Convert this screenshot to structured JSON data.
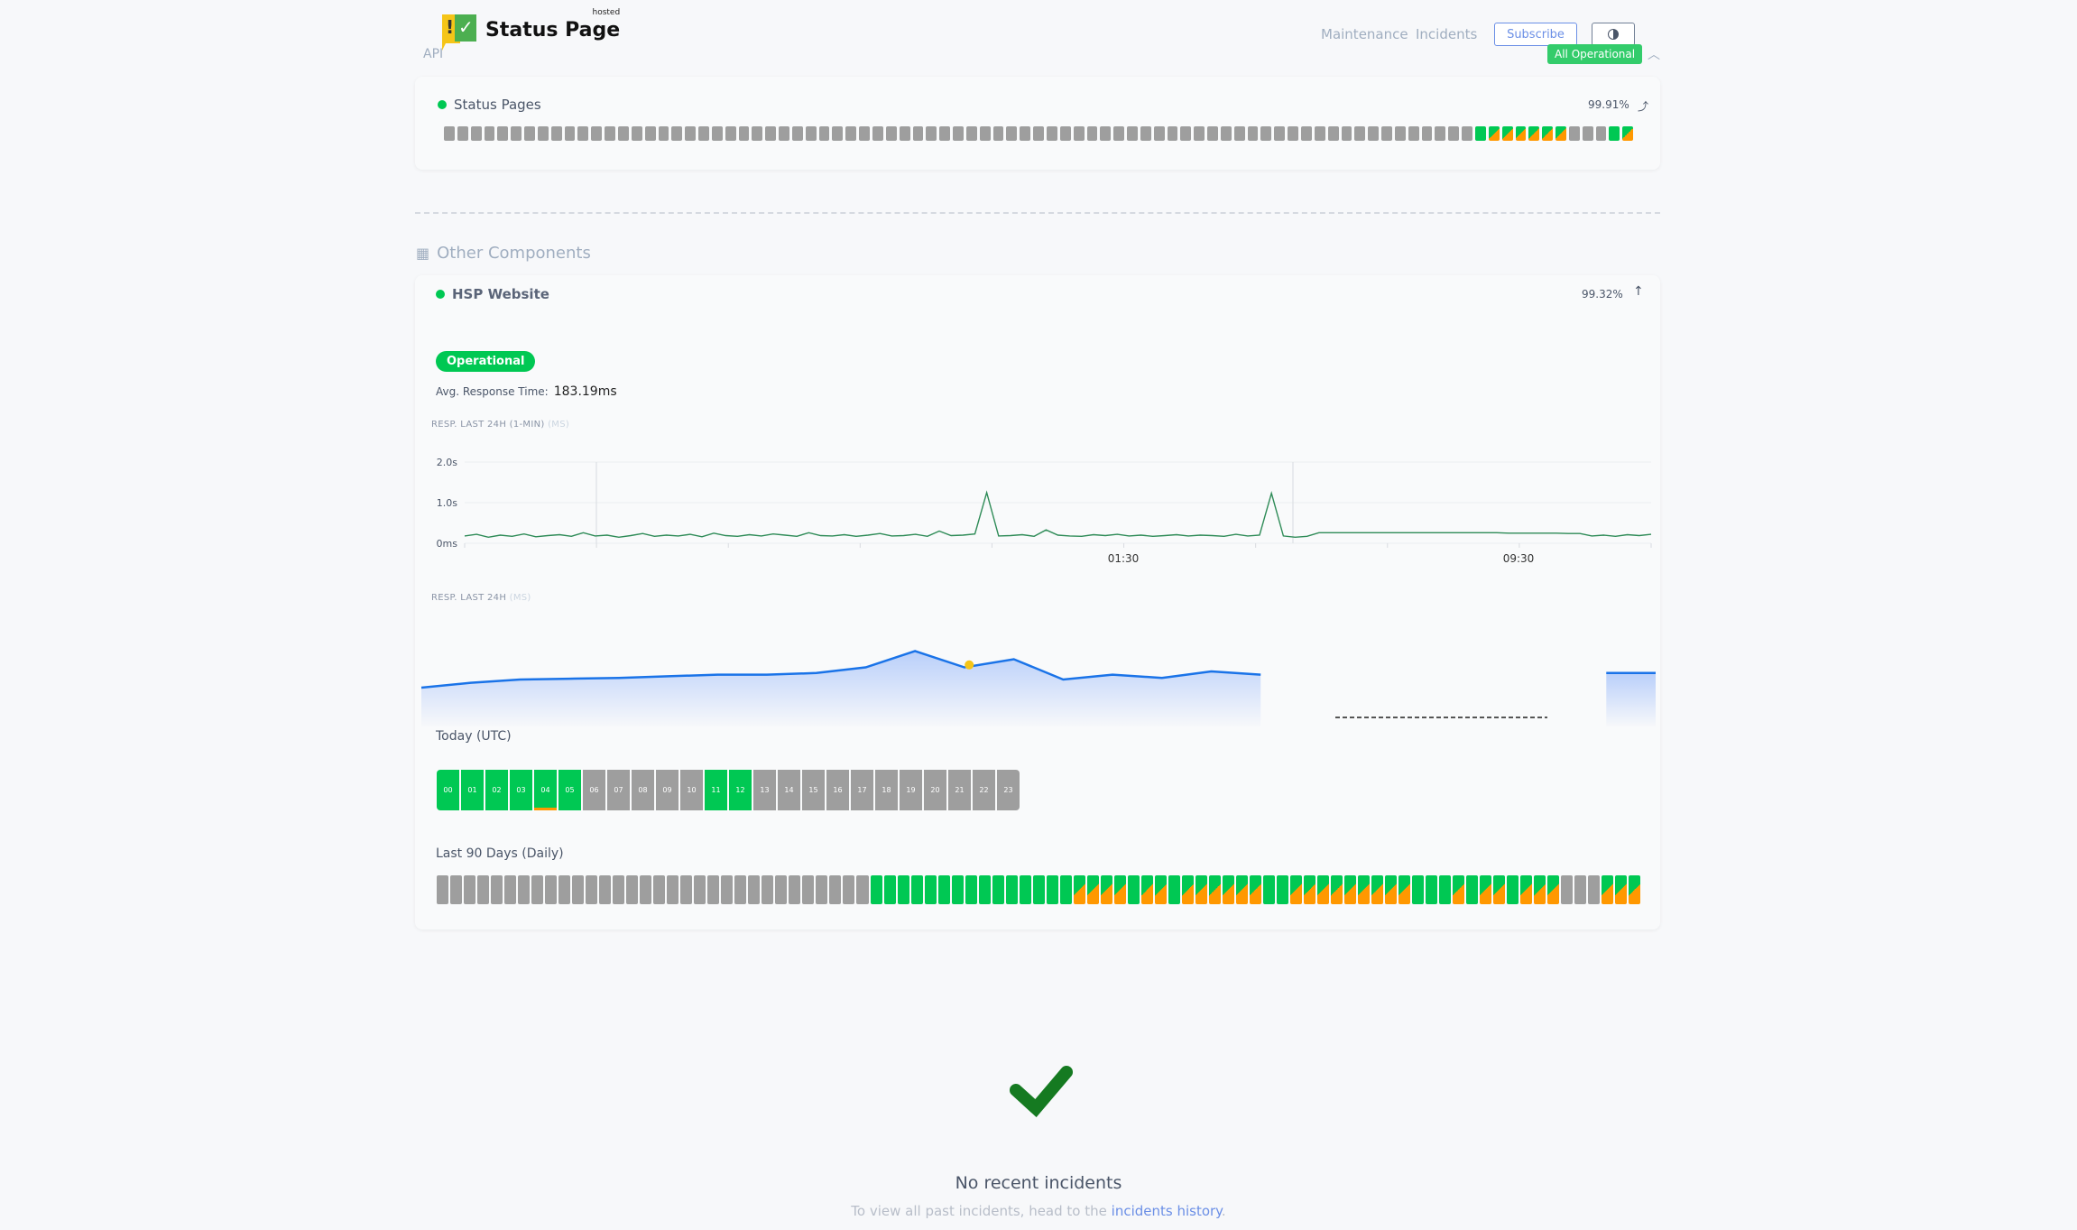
{
  "header": {
    "logo_text": "Status Page",
    "logo_hosted": "hosted",
    "api_label": "API",
    "nav": [
      "Maintenance",
      "Incidents"
    ],
    "subscribe": "Subscribe",
    "theme_icon": "contrast-icon",
    "overall_status": "All Operational"
  },
  "colors": {
    "operational": "#00c853",
    "partial": "#ff9800",
    "no_data": "#9e9e9e",
    "accent": "#6b8fe6",
    "line": "#2e8b57",
    "area_line": "#1a73e8"
  },
  "status_pages": {
    "name": "Status Pages",
    "uptime": "99.91%",
    "days": "xxxxxxxxxxxxxxxxxxxxxxxxxxxxxxxxxxxxxxxxxxxxxxxxxxxxxxxxxxxxxxxxxxxxxxxxxxxxxgppppppxxxgp"
  },
  "other_components": {
    "title": "Other Components"
  },
  "hsp": {
    "name": "HSP Website",
    "uptime": "99.32%",
    "status": "Operational",
    "avg_label": "Avg. Response Time:",
    "avg_value": "183.19ms",
    "chart1_title": "RESP. LAST 24H (1-MIN)",
    "chart1_unit": "(MS)",
    "chart2_title": "RESP. LAST 24H",
    "chart2_unit": "(MS)",
    "today_label": "Today (UTC)",
    "hours": [
      {
        "h": "00",
        "s": "g"
      },
      {
        "h": "01",
        "s": "g"
      },
      {
        "h": "02",
        "s": "g"
      },
      {
        "h": "03",
        "s": "g"
      },
      {
        "h": "04",
        "s": "g",
        "warn": true
      },
      {
        "h": "05",
        "s": "g"
      },
      {
        "h": "06",
        "s": "x"
      },
      {
        "h": "07",
        "s": "x"
      },
      {
        "h": "08",
        "s": "x"
      },
      {
        "h": "09",
        "s": "x"
      },
      {
        "h": "10",
        "s": "x"
      },
      {
        "h": "11",
        "s": "g"
      },
      {
        "h": "12",
        "s": "g"
      },
      {
        "h": "13",
        "s": "x"
      },
      {
        "h": "14",
        "s": "x"
      },
      {
        "h": "15",
        "s": "x"
      },
      {
        "h": "16",
        "s": "x"
      },
      {
        "h": "17",
        "s": "x"
      },
      {
        "h": "18",
        "s": "x"
      },
      {
        "h": "19",
        "s": "x"
      },
      {
        "h": "20",
        "s": "x"
      },
      {
        "h": "21",
        "s": "x"
      },
      {
        "h": "22",
        "s": "x"
      },
      {
        "h": "23",
        "s": "x"
      }
    ],
    "days_label": "Last 90 Days (Daily)",
    "days": "xxxxxxxxxxxxxxxxxxxxxxxxxxxxxxxxgggggggggggggggppppgppgppppppggpppppppppgggpgppgpppxxxppp"
  },
  "chart_data": [
    {
      "type": "line",
      "title": "RESP. LAST 24H (1-MIN)",
      "ylabel": "(MS)",
      "yticks": [
        "0ms",
        "1.0s",
        "2.0s"
      ],
      "ylim": [
        0,
        2000
      ],
      "xticks": [
        "01:30",
        "09:30"
      ],
      "values": [
        180,
        220,
        150,
        200,
        170,
        230,
        160,
        190,
        210,
        170,
        260,
        180,
        200,
        150,
        190,
        240,
        170,
        200,
        180,
        220,
        160,
        250,
        190,
        170,
        210,
        180,
        230,
        200,
        170,
        260,
        190,
        180,
        210,
        170,
        200,
        240,
        180,
        190,
        220,
        170,
        300,
        190,
        200,
        230,
        1250,
        180,
        190,
        210,
        170,
        330,
        200,
        180,
        170,
        210,
        190,
        220,
        180,
        200,
        170,
        190,
        210,
        180,
        200,
        190,
        170,
        220,
        180,
        200,
        1230,
        180,
        150,
        170,
        260,
        260,
        260,
        260,
        260,
        260,
        260,
        260,
        260,
        260,
        260,
        260,
        260,
        260,
        260,
        260,
        250,
        250,
        250,
        250,
        250,
        240,
        240,
        180,
        200,
        170,
        210,
        190,
        220
      ]
    },
    {
      "type": "area",
      "title": "RESP. LAST 24H",
      "ylabel": "(MS)",
      "values": [
        170,
        176,
        180,
        181,
        182,
        184,
        186,
        186,
        188,
        195,
        215,
        195,
        205,
        180,
        186,
        182,
        190,
        186,
        null,
        null,
        null,
        null,
        null,
        null,
        188,
        188
      ]
    }
  ],
  "incidents": {
    "title": "No recent incidents",
    "text": "To view all past incidents, head to the",
    "link": "incidents history",
    "end": "."
  }
}
